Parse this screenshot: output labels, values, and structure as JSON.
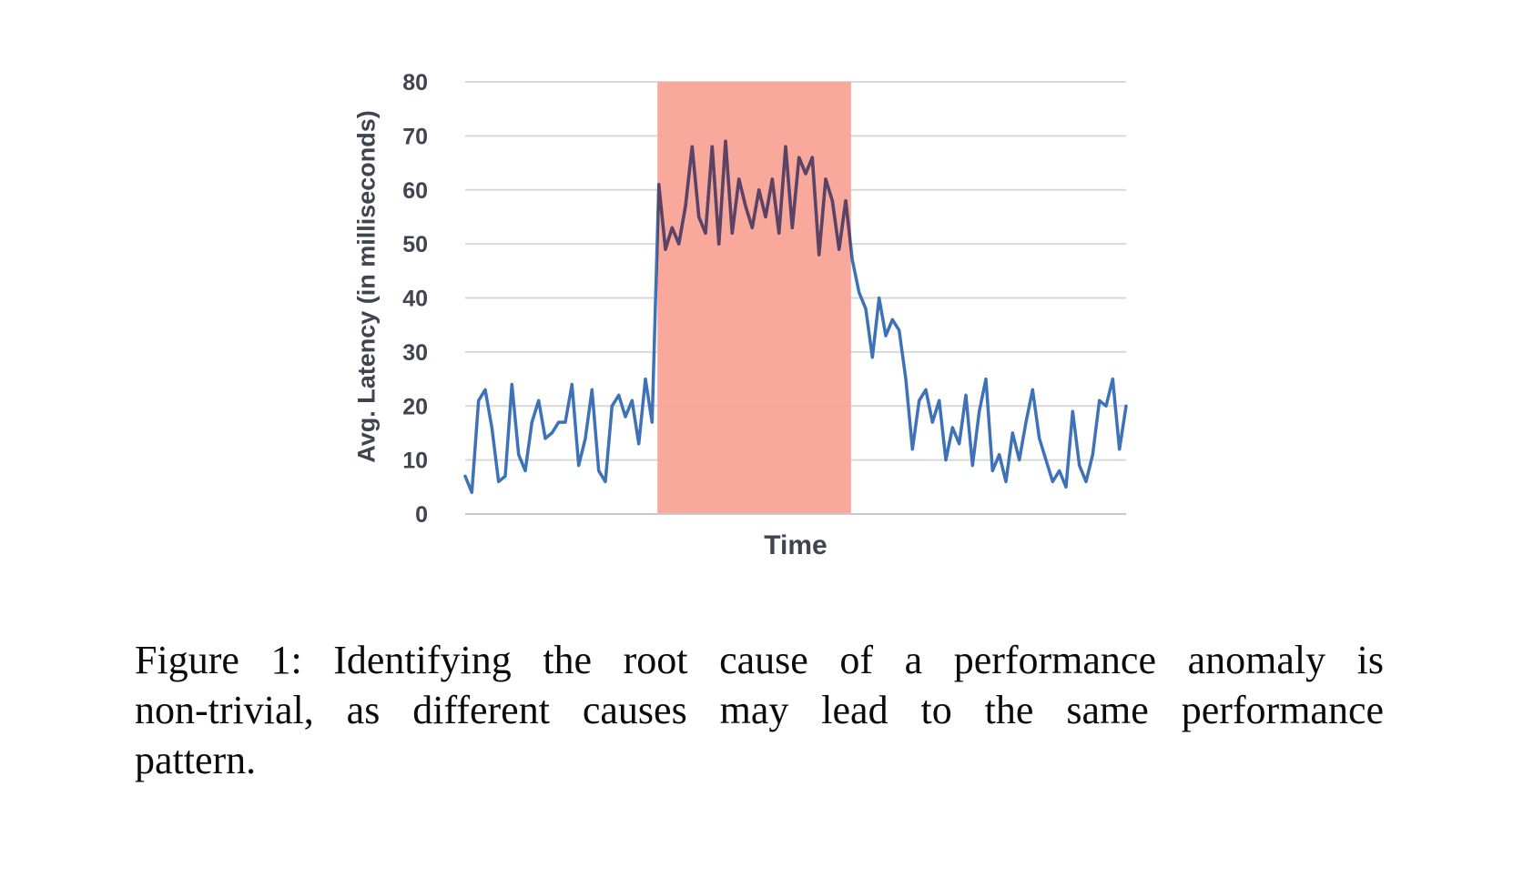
{
  "figure": {
    "caption": "Figure 1: Identifying the root cause of a performance anomaly is non-trivial, as different causes may lead to the same performance pattern.",
    "caption_lines": [
      "Figure 1: Identifying the root cause of a performance anomaly is",
      "non-trivial, as different causes may lead to the same performance",
      "pattern."
    ]
  },
  "chart_data": {
    "type": "line",
    "title": "",
    "xlabel": "Time",
    "ylabel": "Avg. Latency (in milliseconds)",
    "ylim": [
      0,
      80
    ],
    "yticks": [
      0,
      10,
      20,
      30,
      40,
      50,
      60,
      70,
      80
    ],
    "xticks": [],
    "grid": "horizontal",
    "legend_position": "none",
    "series": [
      {
        "name": "Avg. Latency",
        "values": [
          7,
          4,
          21,
          23,
          16,
          6,
          7,
          24,
          11,
          8,
          17,
          21,
          14,
          15,
          17,
          17,
          24,
          9,
          14,
          23,
          8,
          6,
          20,
          22,
          18,
          21,
          13,
          25,
          17,
          61,
          49,
          53,
          50,
          57,
          68,
          55,
          52,
          68,
          50,
          69,
          52,
          62,
          57,
          53,
          60,
          55,
          62,
          52,
          68,
          53,
          66,
          63,
          66,
          48,
          62,
          58,
          49,
          58,
          47,
          41,
          38,
          29,
          40,
          33,
          36,
          34,
          25,
          12,
          21,
          23,
          17,
          21,
          10,
          16,
          13,
          22,
          9,
          19,
          25,
          8,
          11,
          6,
          15,
          10,
          17,
          23,
          14,
          10,
          6,
          8,
          5,
          19,
          9,
          6,
          11,
          21,
          20,
          25,
          12,
          20
        ]
      }
    ],
    "anomaly_region": {
      "start_index": 28.8,
      "end_index": 57.8,
      "y_from": 0,
      "y_to": 80
    },
    "colors": {
      "line": "#3E72B8",
      "line_in_region": "#5E4263",
      "region_fill": "#F8A294",
      "gridline": "#D9D9D9",
      "axis_line": "#C9C9C9",
      "axis_text": "#3F4450"
    }
  }
}
